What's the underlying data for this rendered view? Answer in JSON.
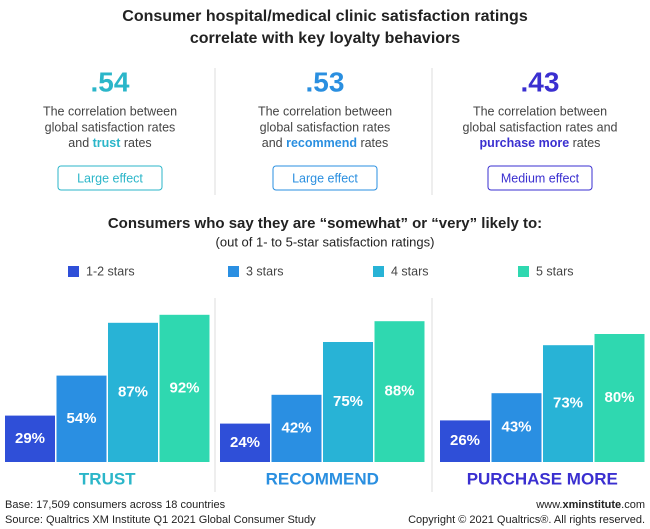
{
  "header": {
    "title_lines": [
      "Consumer hospital/medical clinic satisfaction ratings",
      "correlate with key loyalty behaviors"
    ]
  },
  "correlations": [
    {
      "value_text": ".54",
      "color": "#2bb6c9",
      "lines": [
        "The correlation between",
        "global satisfaction rates"
      ],
      "last_line": [
        "and ",
        "trust",
        " rates"
      ],
      "effect": "Large effect"
    },
    {
      "value_text": ".53",
      "color": "#2a8fe0",
      "lines": [
        "The correlation between",
        "global satisfaction rates"
      ],
      "last_line": [
        "and ",
        "recommend",
        " rates"
      ],
      "effect": "Large effect"
    },
    {
      "value_text": ".43",
      "color": "#3a2fd0",
      "lines": [
        "The correlation between",
        "global satisfaction rates and"
      ],
      "last_line": [
        "",
        "purchase more",
        " rates"
      ],
      "effect": "Medium effect"
    }
  ],
  "chart_data": {
    "type": "bar",
    "title": "Consumers who say they are “somewhat” or “very” likely to:",
    "subtitle": "(out of 1- to 5-star satisfaction ratings)",
    "categories": [
      "TRUST",
      "RECOMMEND",
      "PURCHASE MORE"
    ],
    "category_colors": [
      "#2bb6c9",
      "#2a8fe0",
      "#3a2fd0"
    ],
    "ylim": [
      0,
      100
    ],
    "series": [
      {
        "name": "1-2 stars",
        "color": "#2f4fd8",
        "values": [
          29,
          24,
          26
        ],
        "value_labels": [
          "29%",
          "24%",
          "26%"
        ]
      },
      {
        "name": "3 stars",
        "color": "#2a8fe2",
        "values": [
          54,
          42,
          43
        ],
        "value_labels": [
          "54%",
          "42%",
          "43%"
        ]
      },
      {
        "name": "4 stars",
        "color": "#28b3d6",
        "values": [
          87,
          75,
          73
        ],
        "value_labels": [
          "87%",
          "75%",
          "73%"
        ]
      },
      {
        "name": "5 stars",
        "color": "#2fd8b0",
        "values": [
          92,
          88,
          80
        ],
        "value_labels": [
          "92%",
          "88%",
          "80%"
        ]
      }
    ]
  },
  "footer": {
    "left": [
      "Base: 17,509 consumers across 18 countries",
      "Source: Qualtrics XM Institute Q1 2021 Global Consumer Study"
    ],
    "url": [
      "www.",
      "xminstitute",
      ".com"
    ],
    "copyright": "Copyright © 2021 Qualtrics®. All rights reserved."
  }
}
